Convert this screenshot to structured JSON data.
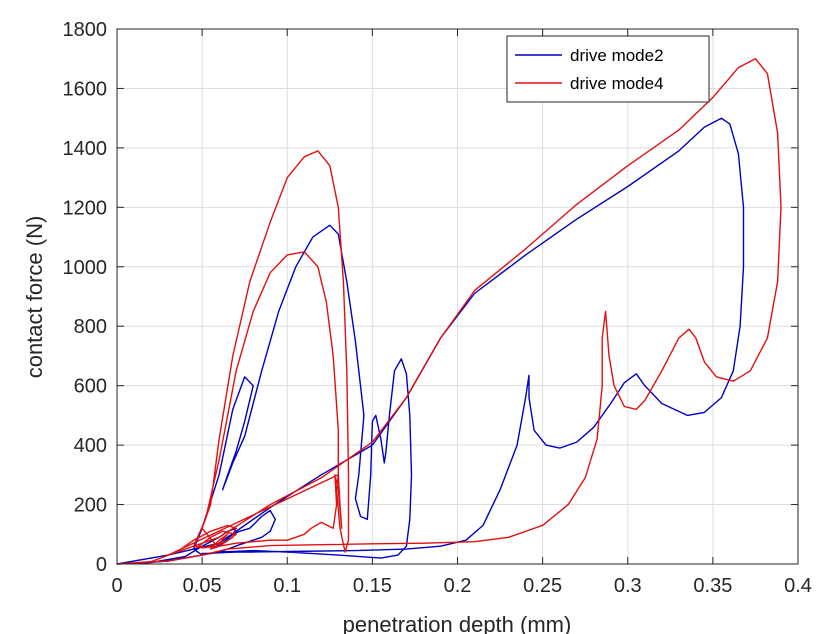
{
  "chart_data": {
    "type": "line",
    "title": "",
    "xlabel": "penetration depth (mm)",
    "ylabel": "contact force (N)",
    "xlim": [
      0,
      0.4
    ],
    "ylim": [
      0,
      1800
    ],
    "x_ticks": [
      0,
      0.05,
      0.1,
      0.15,
      0.2,
      0.25,
      0.3,
      0.35,
      0.4
    ],
    "x_tick_labels": [
      "0",
      "0.05",
      "0.1",
      "0.15",
      "0.2",
      "0.25",
      "0.3",
      "0.35",
      "0.4"
    ],
    "y_ticks": [
      0,
      200,
      400,
      600,
      800,
      1000,
      1200,
      1400,
      1600,
      1800
    ],
    "y_tick_labels": [
      "0",
      "200",
      "400",
      "600",
      "800",
      "1000",
      "1200",
      "1400",
      "1600",
      "1800"
    ],
    "grid": true,
    "legend_position": "top-right",
    "series": [
      {
        "name": "drive mode2",
        "color": "#0000c0",
        "points": [
          [
            0,
            0
          ],
          [
            0.02,
            5
          ],
          [
            0.04,
            25
          ],
          [
            0.05,
            60
          ],
          [
            0.06,
            90
          ],
          [
            0.065,
            110
          ],
          [
            0.07,
            120
          ],
          [
            0.068,
            100
          ],
          [
            0.062,
            70
          ],
          [
            0.058,
            55
          ],
          [
            0.06,
            70
          ],
          [
            0.066,
            95
          ],
          [
            0.072,
            110
          ],
          [
            0.078,
            120
          ],
          [
            0.085,
            160
          ],
          [
            0.09,
            180
          ],
          [
            0.093,
            150
          ],
          [
            0.09,
            110
          ],
          [
            0.085,
            90
          ],
          [
            0.08,
            80
          ],
          [
            0.072,
            65
          ],
          [
            0.065,
            50
          ],
          [
            0.06,
            40
          ],
          [
            0.055,
            35
          ],
          [
            0.05,
            30
          ],
          [
            0.045,
            50
          ],
          [
            0.05,
            120
          ],
          [
            0.06,
            300
          ],
          [
            0.068,
            520
          ],
          [
            0.075,
            630
          ],
          [
            0.08,
            600
          ],
          [
            0.075,
            480
          ],
          [
            0.07,
            380
          ],
          [
            0.065,
            300
          ],
          [
            0.062,
            250
          ],
          [
            0.068,
            340
          ],
          [
            0.075,
            430
          ],
          [
            0.085,
            650
          ],
          [
            0.095,
            850
          ],
          [
            0.105,
            1000
          ],
          [
            0.115,
            1100
          ],
          [
            0.125,
            1140
          ],
          [
            0.13,
            1110
          ],
          [
            0.135,
            950
          ],
          [
            0.14,
            750
          ],
          [
            0.145,
            500
          ],
          [
            0.142,
            300
          ],
          [
            0.14,
            220
          ],
          [
            0.143,
            160
          ],
          [
            0.147,
            150
          ],
          [
            0.149,
            300
          ],
          [
            0.15,
            480
          ],
          [
            0.152,
            500
          ],
          [
            0.155,
            420
          ],
          [
            0.157,
            340
          ],
          [
            0.158,
            380
          ],
          [
            0.16,
            500
          ],
          [
            0.163,
            650
          ],
          [
            0.167,
            690
          ],
          [
            0.17,
            640
          ],
          [
            0.172,
            500
          ],
          [
            0.173,
            300
          ],
          [
            0.172,
            150
          ],
          [
            0.17,
            60
          ],
          [
            0.165,
            30
          ],
          [
            0.155,
            20
          ],
          [
            0.13,
            30
          ],
          [
            0.1,
            40
          ],
          [
            0.08,
            45
          ],
          [
            0.06,
            40
          ],
          [
            0.03,
            10
          ],
          [
            0.01,
            2
          ],
          [
            0.0,
            0
          ],
          [
            0.03,
            30
          ],
          [
            0.06,
            70
          ],
          [
            0.09,
            190
          ],
          [
            0.12,
            300
          ],
          [
            0.15,
            400
          ],
          [
            0.17,
            560
          ],
          [
            0.19,
            760
          ],
          [
            0.21,
            910
          ],
          [
            0.24,
            1040
          ],
          [
            0.27,
            1160
          ],
          [
            0.3,
            1270
          ],
          [
            0.33,
            1390
          ],
          [
            0.345,
            1470
          ],
          [
            0.355,
            1500
          ],
          [
            0.36,
            1480
          ],
          [
            0.365,
            1380
          ],
          [
            0.368,
            1200
          ],
          [
            0.368,
            1000
          ],
          [
            0.366,
            800
          ],
          [
            0.362,
            650
          ],
          [
            0.355,
            560
          ],
          [
            0.345,
            510
          ],
          [
            0.335,
            500
          ],
          [
            0.32,
            540
          ],
          [
            0.31,
            600
          ],
          [
            0.305,
            640
          ],
          [
            0.298,
            610
          ],
          [
            0.29,
            540
          ],
          [
            0.28,
            460
          ],
          [
            0.27,
            410
          ],
          [
            0.26,
            390
          ],
          [
            0.252,
            400
          ],
          [
            0.245,
            450
          ],
          [
            0.242,
            560
          ],
          [
            0.242,
            635
          ],
          [
            0.24,
            560
          ],
          [
            0.235,
            400
          ],
          [
            0.225,
            250
          ],
          [
            0.215,
            130
          ],
          [
            0.205,
            80
          ],
          [
            0.19,
            60
          ],
          [
            0.17,
            50
          ],
          [
            0.14,
            45
          ],
          [
            0.1,
            42
          ],
          [
            0.07,
            40
          ],
          [
            0.05,
            35
          ]
        ]
      },
      {
        "name": "drive mode4",
        "color": "#e01010",
        "points": [
          [
            0,
            0
          ],
          [
            0.02,
            8
          ],
          [
            0.035,
            40
          ],
          [
            0.045,
            80
          ],
          [
            0.055,
            110
          ],
          [
            0.065,
            130
          ],
          [
            0.07,
            120
          ],
          [
            0.068,
            90
          ],
          [
            0.06,
            60
          ],
          [
            0.055,
            50
          ],
          [
            0.06,
            80
          ],
          [
            0.065,
            100
          ],
          [
            0.06,
            70
          ],
          [
            0.052,
            55
          ],
          [
            0.048,
            60
          ],
          [
            0.055,
            90
          ],
          [
            0.062,
            110
          ],
          [
            0.07,
            100
          ],
          [
            0.064,
            75
          ],
          [
            0.058,
            65
          ],
          [
            0.05,
            120
          ],
          [
            0.055,
            200
          ],
          [
            0.06,
            420
          ],
          [
            0.068,
            700
          ],
          [
            0.078,
            950
          ],
          [
            0.09,
            1150
          ],
          [
            0.1,
            1300
          ],
          [
            0.11,
            1370
          ],
          [
            0.118,
            1390
          ],
          [
            0.125,
            1340
          ],
          [
            0.13,
            1200
          ],
          [
            0.133,
            950
          ],
          [
            0.135,
            650
          ],
          [
            0.136,
            300
          ],
          [
            0.136,
            80
          ],
          [
            0.134,
            40
          ],
          [
            0.131,
            120
          ],
          [
            0.129,
            250
          ],
          [
            0.13,
            300
          ],
          [
            0.131,
            200
          ],
          [
            0.132,
            120
          ],
          [
            0.13,
            250
          ],
          [
            0.128,
            300
          ],
          [
            0.129,
            200
          ],
          [
            0.127,
            120
          ],
          [
            0.12,
            140
          ],
          [
            0.114,
            120
          ],
          [
            0.11,
            100
          ],
          [
            0.1,
            80
          ],
          [
            0.09,
            80
          ],
          [
            0.08,
            75
          ],
          [
            0.07,
            70
          ],
          [
            0.06,
            60
          ],
          [
            0.05,
            55
          ],
          [
            0.045,
            60
          ],
          [
            0.052,
            150
          ],
          [
            0.06,
            350
          ],
          [
            0.07,
            650
          ],
          [
            0.08,
            850
          ],
          [
            0.09,
            980
          ],
          [
            0.1,
            1040
          ],
          [
            0.11,
            1050
          ],
          [
            0.118,
            1000
          ],
          [
            0.123,
            880
          ],
          [
            0.127,
            700
          ],
          [
            0.13,
            450
          ],
          [
            0.13,
            300
          ],
          [
            0.03,
            30
          ],
          [
            0.06,
            90
          ],
          [
            0.09,
            200
          ],
          [
            0.12,
            290
          ],
          [
            0.15,
            410
          ],
          [
            0.17,
            560
          ],
          [
            0.19,
            760
          ],
          [
            0.21,
            920
          ],
          [
            0.24,
            1060
          ],
          [
            0.27,
            1210
          ],
          [
            0.3,
            1340
          ],
          [
            0.33,
            1460
          ],
          [
            0.35,
            1570
          ],
          [
            0.365,
            1670
          ],
          [
            0.375,
            1700
          ],
          [
            0.382,
            1650
          ],
          [
            0.388,
            1450
          ],
          [
            0.39,
            1200
          ],
          [
            0.388,
            950
          ],
          [
            0.382,
            760
          ],
          [
            0.372,
            650
          ],
          [
            0.362,
            615
          ],
          [
            0.352,
            630
          ],
          [
            0.345,
            680
          ],
          [
            0.34,
            760
          ],
          [
            0.336,
            790
          ],
          [
            0.33,
            760
          ],
          [
            0.32,
            650
          ],
          [
            0.31,
            550
          ],
          [
            0.305,
            520
          ],
          [
            0.298,
            530
          ],
          [
            0.292,
            600
          ],
          [
            0.289,
            700
          ],
          [
            0.287,
            850
          ],
          [
            0.285,
            760
          ],
          [
            0.285,
            600
          ],
          [
            0.282,
            420
          ],
          [
            0.275,
            290
          ],
          [
            0.265,
            200
          ],
          [
            0.25,
            130
          ],
          [
            0.23,
            90
          ],
          [
            0.21,
            75
          ],
          [
            0.18,
            70
          ],
          [
            0.15,
            68
          ],
          [
            0.12,
            65
          ],
          [
            0.09,
            62
          ],
          [
            0.065,
            50
          ],
          [
            0.05,
            30
          ],
          [
            0.03,
            10
          ],
          [
            0,
            0
          ]
        ]
      }
    ]
  }
}
